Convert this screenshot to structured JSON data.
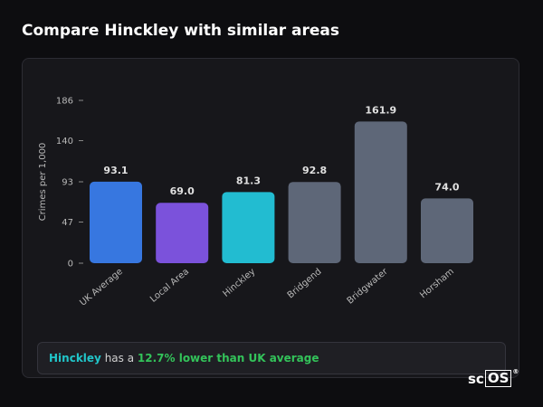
{
  "page": {
    "title": "Compare Hinckley with similar areas"
  },
  "chart_data": {
    "type": "bar",
    "ylabel": "Crimes per 1,000",
    "xlabel": "",
    "ylim": [
      0,
      186
    ],
    "yticks": [
      0,
      47,
      93,
      140,
      186
    ],
    "grid": false,
    "categories": [
      "UK Average",
      "Local Area",
      "Hinckley",
      "Bridgend",
      "Bridgwater",
      "Horsham"
    ],
    "values": [
      93.1,
      69.0,
      81.3,
      92.8,
      161.9,
      74.0
    ],
    "value_labels": [
      "93.1",
      "69.0",
      "81.3",
      "92.8",
      "161.9",
      "74.0"
    ],
    "colors": [
      "#3777e0",
      "#7b52db",
      "#22bcd1",
      "#5e6778",
      "#5e6778",
      "#5e6778"
    ]
  },
  "summary": {
    "area": "Hinckley",
    "text_middle": " has a ",
    "highlight": "12.7% lower than UK average"
  },
  "logo": {
    "prefix": "sc",
    "boxed": "OS",
    "mark": "®"
  }
}
